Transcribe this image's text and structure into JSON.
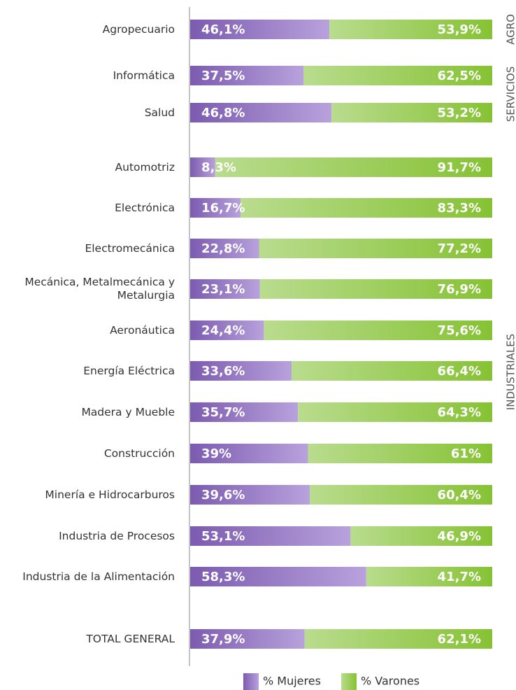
{
  "chart_data": {
    "type": "stacked_bar_horizontal",
    "categories": [
      "Agropecuario",
      "Informática",
      "Salud",
      "Automotriz",
      "Electrónica",
      "Electromecánica",
      "Mecánica, Metalmecánica y Metalurgia",
      "Aeronáutica",
      "Energía Eléctrica",
      "Madera y Mueble",
      "Construcción",
      "Minería e Hidrocarburos",
      "Industria de Procesos",
      "Industria de la Alimentación",
      "TOTAL GENERAL"
    ],
    "xlim": [
      0,
      100
    ],
    "series": [
      {
        "name": "% Mujeres",
        "color": "#8466b4",
        "values": [
          46.1,
          37.5,
          46.8,
          8.3,
          16.7,
          22.8,
          23.1,
          24.4,
          33.6,
          35.7,
          39,
          39.6,
          53.1,
          58.3,
          37.9
        ],
        "value_labels": [
          "46,1%",
          "37,5%",
          "46,8%",
          "8,3%",
          "16,7%",
          "22,8%",
          "23,1%",
          "24,4%",
          "33,6%",
          "35,7%",
          "39%",
          "39,6%",
          "53,1%",
          "58,3%",
          "37,9%"
        ]
      },
      {
        "name": "% Varones",
        "color": "#8cc43c",
        "values": [
          53.9,
          62.5,
          53.2,
          91.7,
          83.3,
          77.2,
          76.9,
          75.6,
          66.4,
          64.3,
          61,
          60.4,
          46.9,
          41.7,
          62.1
        ],
        "value_labels": [
          "53,9%",
          "62,5%",
          "53,2%",
          "91,7%",
          "83,3%",
          "77,2%",
          "76,9%",
          "75,6%",
          "66,4%",
          "64,3%",
          "61%",
          "60,4%",
          "46,9%",
          "41,7%",
          "62,1%"
        ]
      }
    ],
    "groups": [
      {
        "label": "AGRO",
        "rows": 1
      },
      {
        "label": "SERVICIOS",
        "rows": 2
      },
      {
        "label": "INDUSTRIALES",
        "rows": 11
      }
    ]
  }
}
